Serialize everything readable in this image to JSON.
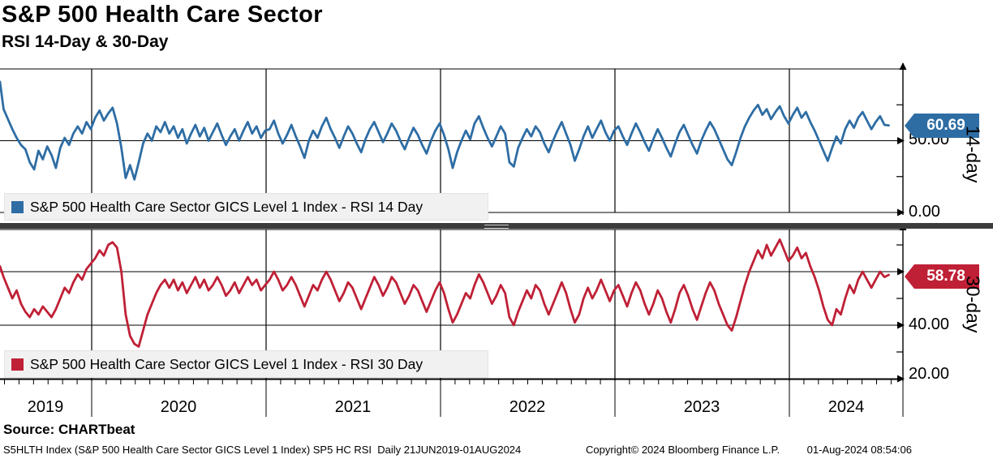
{
  "header": {
    "title": "S&P 500 Health Care Sector",
    "subtitle": "RSI 14-Day & 30-Day"
  },
  "x_axis": {
    "years": [
      "2019",
      "2020",
      "2021",
      "2022",
      "2023",
      "2024"
    ]
  },
  "footer": {
    "source": "Source: CHARTbeat",
    "description": "S5HLTH Index (S&P 500 Health Care Sector GICS Level 1 Index) SP5 HC RSI  Daily 21JUN2019-01AUG2024",
    "copyright": "Copyright© 2024 Bloomberg Finance L.P.",
    "timestamp": "01-Aug-2024 08:54:06"
  },
  "colors": {
    "rsi14": "#2e6da4",
    "rsi30": "#bf2036",
    "grid": "#000000",
    "separator": "#3c3c3c",
    "legend_bg": "#f1f1f1"
  },
  "chart_data": [
    {
      "type": "line",
      "name": "RSI 14 Day",
      "legend": "S&P 500 Health Care Sector GICS Level 1 Index - RSI 14 Day",
      "axis_title": "14-day",
      "last_value": 60.69,
      "last_value_label": "60.69",
      "color": "#2e6da4",
      "ylim": [
        0,
        100
      ],
      "yticks_labeled": [
        50,
        0
      ],
      "ytick_labels": [
        "50.00",
        "0.00"
      ],
      "yticks_minor": [
        75,
        25
      ],
      "x_start_decimal_year": 2019.47,
      "x_step_decimal_year": 0.025,
      "x_range_text": "21JUN2019-01AUG2024",
      "grid": true,
      "legend_position": "bottom-left",
      "values": [
        91,
        72,
        65,
        58,
        52,
        47,
        44,
        35,
        30,
        43,
        37,
        46,
        40,
        31,
        45,
        52,
        47,
        55,
        60,
        55,
        63,
        58,
        66,
        71,
        64,
        69,
        73,
        62,
        45,
        24,
        33,
        23,
        35,
        48,
        55,
        50,
        60,
        56,
        63,
        55,
        60,
        52,
        58,
        48,
        55,
        61,
        53,
        59,
        50,
        56,
        62,
        54,
        47,
        53,
        58,
        50,
        57,
        63,
        55,
        60,
        52,
        57,
        58,
        64,
        55,
        48,
        54,
        61,
        53,
        46,
        38,
        50,
        57,
        52,
        60,
        66,
        58,
        52,
        45,
        53,
        60,
        55,
        48,
        42,
        51,
        58,
        63,
        56,
        49,
        55,
        62,
        57,
        50,
        44,
        52,
        59,
        54,
        47,
        41,
        50,
        57,
        62,
        54,
        44,
        31,
        42,
        50,
        57,
        51,
        62,
        67,
        59,
        52,
        46,
        53,
        60,
        55,
        35,
        32,
        45,
        52,
        58,
        53,
        60,
        56,
        48,
        42,
        50,
        57,
        63,
        55,
        47,
        36,
        44,
        53,
        60,
        52,
        58,
        64,
        56,
        50,
        57,
        60,
        53,
        47,
        55,
        62,
        56,
        49,
        43,
        51,
        58,
        52,
        45,
        39,
        48,
        56,
        61,
        54,
        47,
        41,
        50,
        57,
        63,
        58,
        51,
        44,
        37,
        33,
        42,
        52,
        60,
        66,
        71,
        75,
        68,
        72,
        65,
        70,
        74,
        67,
        62,
        68,
        73,
        66,
        70,
        63,
        57,
        50,
        43,
        36,
        45,
        53,
        48,
        58,
        64,
        59,
        66,
        70,
        64,
        58,
        63,
        67,
        61,
        60.69
      ]
    },
    {
      "type": "line",
      "name": "RSI 30 Day",
      "legend": "S&P 500 Health Care Sector GICS Level 1 Index - RSI 30 Day",
      "axis_title": "30-day",
      "last_value": 58.78,
      "last_value_label": "58.78",
      "color": "#bf2036",
      "ylim": [
        19,
        76
      ],
      "yticks_labeled": [
        40,
        20
      ],
      "ytick_labels": [
        "40.00",
        "20.00"
      ],
      "yticks_unlabeled_grid": [
        60
      ],
      "yticks_minor": [
        70,
        50,
        30
      ],
      "x_start_decimal_year": 2019.47,
      "x_step_decimal_year": 0.025,
      "x_range_text": "21JUN2019-01AUG2024",
      "grid": true,
      "legend_position": "bottom-left",
      "values": [
        62,
        58,
        54,
        50,
        53,
        48,
        45,
        43,
        46,
        44,
        47,
        45,
        43,
        46,
        50,
        54,
        52,
        56,
        59,
        57,
        61,
        63,
        65,
        68,
        66,
        70,
        71,
        69,
        60,
        44,
        36,
        33,
        32,
        38,
        44,
        48,
        52,
        55,
        57,
        54,
        57,
        53,
        56,
        52,
        55,
        58,
        54,
        57,
        53,
        55,
        58,
        55,
        51,
        53,
        56,
        52,
        55,
        58,
        55,
        57,
        53,
        55,
        57,
        60,
        57,
        53,
        55,
        58,
        55,
        51,
        47,
        51,
        55,
        53,
        57,
        60,
        57,
        53,
        49,
        52,
        56,
        54,
        50,
        46,
        50,
        54,
        58,
        55,
        51,
        54,
        58,
        56,
        52,
        48,
        51,
        55,
        53,
        49,
        45,
        49,
        53,
        56,
        52,
        46,
        41,
        44,
        48,
        52,
        50,
        55,
        59,
        56,
        52,
        48,
        51,
        55,
        52,
        43,
        40,
        45,
        49,
        53,
        50,
        55,
        53,
        48,
        44,
        48,
        52,
        56,
        52,
        46,
        41,
        44,
        50,
        54,
        50,
        53,
        57,
        53,
        49,
        53,
        55,
        51,
        47,
        52,
        56,
        53,
        48,
        44,
        48,
        53,
        50,
        45,
        41,
        46,
        52,
        55,
        51,
        46,
        42,
        47,
        52,
        56,
        53,
        48,
        44,
        40,
        38,
        43,
        49,
        55,
        60,
        64,
        68,
        65,
        70,
        66,
        69,
        72,
        68,
        64,
        66,
        69,
        65,
        67,
        62,
        58,
        53,
        47,
        42,
        40,
        46,
        44,
        50,
        55,
        52,
        57,
        60,
        57,
        54,
        57,
        60,
        58,
        58.78
      ]
    }
  ]
}
